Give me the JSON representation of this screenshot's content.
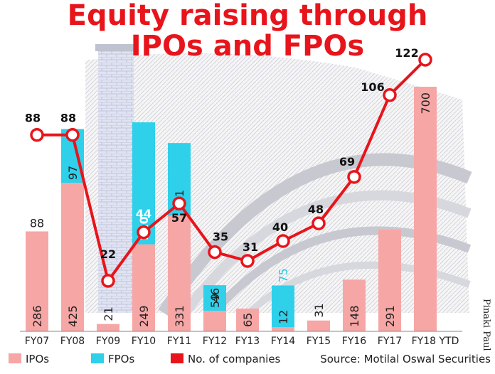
{
  "colors": {
    "ipo": "#f7a6a6",
    "fpo": "#2ed0ea",
    "companies": "#e8141b",
    "title": "#e8141b"
  },
  "legend": {
    "ipos": "IPOs",
    "fpos": "FPOs",
    "companies": "No. of companies"
  },
  "source": "Source: Motilal Oswal Securities",
  "credit": "Pinaki Paul",
  "chart_data": {
    "type": "bar",
    "title": "Equity raising through IPOs and FPOs",
    "title_lines": [
      "Equity raising through",
      "IPOs and FPOs"
    ],
    "categories": [
      "FY07",
      "FY08",
      "FY09",
      "FY10",
      "FY11",
      "FY12",
      "FY13",
      "FY14",
      "FY15",
      "FY16",
      "FY17",
      "FY18 YTD"
    ],
    "series": [
      {
        "name": "IPOs",
        "kind": "stacked-bar",
        "values": [
          286,
          425,
          21,
          249,
          331,
          59,
          65,
          12,
          31,
          148,
          291,
          700
        ]
      },
      {
        "name": "FPOs",
        "kind": "stacked-bar",
        "values": [
          null,
          97,
          null,
          220,
          131,
          46,
          null,
          75,
          null,
          null,
          null,
          null
        ]
      },
      {
        "name": "No. of companies",
        "kind": "line",
        "values": [
          88,
          88,
          22,
          44,
          57,
          35,
          31,
          40,
          48,
          69,
          106,
          122
        ]
      }
    ],
    "bar_totals_printed": [
      88,
      null,
      null,
      null,
      null,
      null,
      null,
      null,
      null,
      null,
      null,
      null
    ],
    "legend_position": "bottom",
    "grid": false
  }
}
